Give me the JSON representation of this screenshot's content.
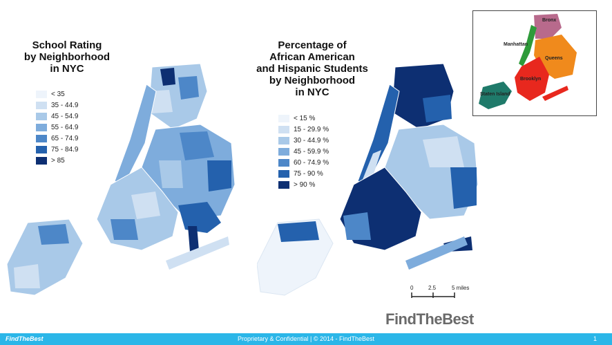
{
  "left_map": {
    "title_lines": [
      "School Rating",
      "by Neighborhood",
      "in NYC"
    ],
    "legend": [
      {
        "label": "< 35",
        "color": "#eef4fb"
      },
      {
        "label": "35 - 44.9",
        "color": "#cfe0f2"
      },
      {
        "label": "45 - 54.9",
        "color": "#a9c9e8"
      },
      {
        "label": "55 - 64.9",
        "color": "#7eacdc"
      },
      {
        "label": "65 - 74.9",
        "color": "#4d87c8"
      },
      {
        "label": "75 - 84.9",
        "color": "#2461ad"
      },
      {
        "label": "> 85",
        "color": "#0d2f72"
      }
    ]
  },
  "right_map": {
    "title_lines": [
      "Percentage of",
      "African American",
      "and Hispanic Students",
      "by Neighborhood",
      "in NYC"
    ],
    "legend": [
      {
        "label": "< 15 %",
        "color": "#eef4fb"
      },
      {
        "label": "15 - 29.9 %",
        "color": "#cfe0f2"
      },
      {
        "label": "30 - 44.9 %",
        "color": "#a9c9e8"
      },
      {
        "label": "45 - 59.9 %",
        "color": "#7eacdc"
      },
      {
        "label": "60 - 74.9 %",
        "color": "#4d87c8"
      },
      {
        "label": "75 - 90 %",
        "color": "#2461ad"
      },
      {
        "label": "> 90 %",
        "color": "#0d2f72"
      }
    ]
  },
  "inset": {
    "boroughs": [
      {
        "name": "Bronx",
        "color": "#b86a8c"
      },
      {
        "name": "Manhattan",
        "color": "#2e9b3a"
      },
      {
        "name": "Queens",
        "color": "#f08a1c"
      },
      {
        "name": "Brooklyn",
        "color": "#e8281e"
      },
      {
        "name": "Staten Island",
        "color": "#1f7a6a"
      }
    ]
  },
  "scale": {
    "ticks": [
      "0",
      "2.5",
      "5 miles"
    ]
  },
  "logo": {
    "find": "Find",
    "the": "The",
    "best": "Best"
  },
  "footer": {
    "brand": "FindTheBest",
    "center": "Proprietary & Confidential | © 2014 - FindTheBest",
    "page": "1",
    "color": "#2bb6e8"
  }
}
